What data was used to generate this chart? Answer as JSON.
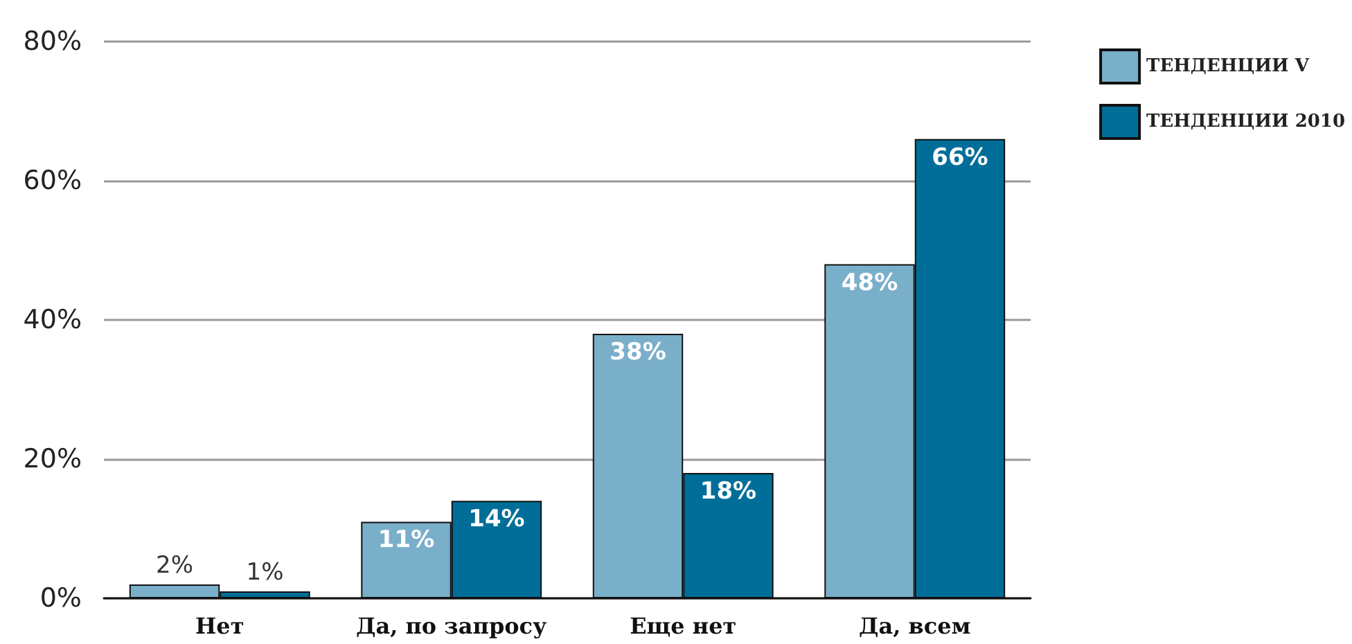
{
  "chart_data": {
    "type": "bar",
    "categories": [
      "Нет",
      "Да, по запросу",
      "Еще нет",
      "Да, всем"
    ],
    "series": [
      {
        "name": "ТЕНДЕНЦИИ V",
        "color": "#7aafca",
        "values": [
          2,
          11,
          38,
          48
        ],
        "value_labels": [
          "2%",
          "11%",
          "38%",
          "48%"
        ]
      },
      {
        "name": "ТЕНДЕНЦИИ 2010",
        "color": "#006e98",
        "values": [
          1,
          14,
          18,
          66
        ],
        "value_labels": [
          "1%",
          "14%",
          "18%",
          "66%"
        ]
      }
    ],
    "ylim": [
      0,
      80
    ],
    "yticks": [
      {
        "value": 0,
        "label": "0%"
      },
      {
        "value": 20,
        "label": "20%"
      },
      {
        "value": 40,
        "label": "40%"
      },
      {
        "value": 60,
        "label": "60%"
      },
      {
        "value": 80,
        "label": "80%"
      }
    ],
    "grid": "y",
    "legend": "top right"
  }
}
